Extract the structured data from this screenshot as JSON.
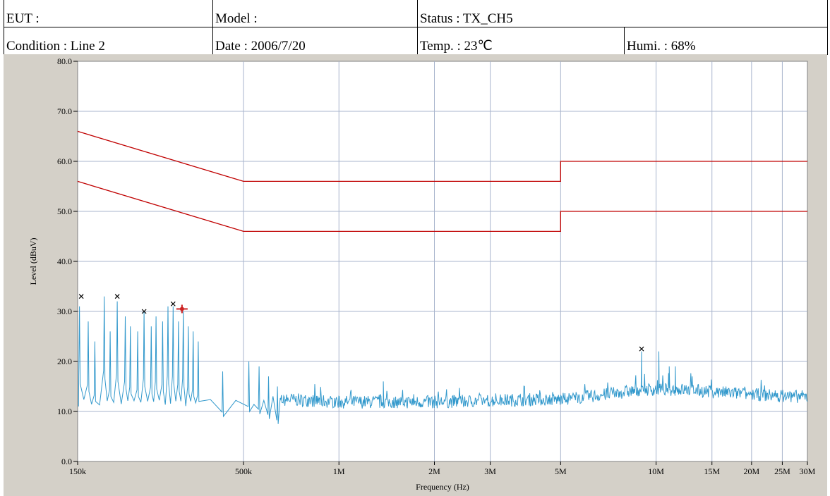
{
  "header": {
    "eut": "EUT :",
    "model": "Model :",
    "status": "Status : TX_CH5",
    "condition": "Condition : Line 2",
    "date": "Date : 2006/7/20",
    "temp": "Temp. : 23℃",
    "humi": "Humi. : 68%"
  },
  "colors": {
    "limit": "#c00000",
    "trace": "#3399cc",
    "marker": "#000000",
    "highlight": "#cc2222",
    "grid": "#a8b4cc",
    "plot_bg": "#ffffff",
    "frame_bg": "#d4d0c8"
  },
  "chart_data": {
    "type": "line",
    "xlabel": "Frequency (Hz)",
    "ylabel": "Level (dBuV)",
    "x_scale": "log",
    "xlim": [
      150000,
      30000000
    ],
    "ylim": [
      0,
      80
    ],
    "grid": true,
    "x_ticks": [
      {
        "value": 150000,
        "label": "150k"
      },
      {
        "value": 500000,
        "label": "500k"
      },
      {
        "value": 1000000,
        "label": "1M"
      },
      {
        "value": 2000000,
        "label": "2M"
      },
      {
        "value": 3000000,
        "label": "3M"
      },
      {
        "value": 5000000,
        "label": "5M"
      },
      {
        "value": 10000000,
        "label": "10M"
      },
      {
        "value": 15000000,
        "label": "15M"
      },
      {
        "value": 20000000,
        "label": "20M"
      },
      {
        "value": 25000000,
        "label": "25M"
      },
      {
        "value": 30000000,
        "label": "30M"
      }
    ],
    "y_ticks": [
      {
        "value": 0,
        "label": "0.0"
      },
      {
        "value": 10,
        "label": "10.0"
      },
      {
        "value": 20,
        "label": "20.0"
      },
      {
        "value": 30,
        "label": "30.0"
      },
      {
        "value": 40,
        "label": "40.0"
      },
      {
        "value": 50,
        "label": "50.0"
      },
      {
        "value": 60,
        "label": "60.0"
      },
      {
        "value": 70,
        "label": "70.0"
      },
      {
        "value": 80,
        "label": "80.0"
      }
    ],
    "limit_lines": [
      {
        "points": [
          [
            150000,
            66
          ],
          [
            500000,
            56
          ],
          [
            5000000,
            56
          ],
          [
            5000000,
            60
          ],
          [
            30000000,
            60
          ]
        ]
      },
      {
        "points": [
          [
            150000,
            56
          ],
          [
            500000,
            46
          ],
          [
            5000000,
            46
          ],
          [
            5000000,
            50
          ],
          [
            30000000,
            50
          ]
        ]
      }
    ],
    "markers": [
      {
        "x": 154000,
        "y": 33
      },
      {
        "x": 200000,
        "y": 33
      },
      {
        "x": 243000,
        "y": 30
      },
      {
        "x": 300000,
        "y": 31.5
      },
      {
        "x": 9000000,
        "y": 22.5
      }
    ],
    "highlight_marker": {
      "x": 320000,
      "y": 30.5
    },
    "trace_peaks": [
      [
        152000,
        31
      ],
      [
        162000,
        28
      ],
      [
        170000,
        24
      ],
      [
        182000,
        33
      ],
      [
        190000,
        26
      ],
      [
        200000,
        32
      ],
      [
        212000,
        29
      ],
      [
        220000,
        27
      ],
      [
        232000,
        26
      ],
      [
        243000,
        30
      ],
      [
        256000,
        27
      ],
      [
        265000,
        29
      ],
      [
        278000,
        28
      ],
      [
        289000,
        31
      ],
      [
        300000,
        31
      ],
      [
        312000,
        28
      ],
      [
        323000,
        30
      ],
      [
        335000,
        27
      ],
      [
        347000,
        26
      ],
      [
        360000,
        24
      ],
      [
        430000,
        18
      ],
      [
        520000,
        20
      ],
      [
        560000,
        19
      ],
      [
        600000,
        17
      ],
      [
        640000,
        15
      ]
    ],
    "trace_spikes": [
      [
        1380000,
        16
      ],
      [
        9000000,
        22
      ],
      [
        10200000,
        22
      ],
      [
        11000000,
        19
      ],
      [
        11500000,
        19
      ],
      [
        13000000,
        17
      ]
    ],
    "noise_floor": [
      [
        150000,
        11
      ],
      [
        500000,
        11
      ],
      [
        700000,
        12
      ],
      [
        1000000,
        11.5
      ],
      [
        2000000,
        11.5
      ],
      [
        4000000,
        12
      ],
      [
        5000000,
        12
      ],
      [
        7000000,
        13
      ],
      [
        9000000,
        14
      ],
      [
        12000000,
        14
      ],
      [
        20000000,
        13
      ],
      [
        30000000,
        12.5
      ]
    ]
  }
}
